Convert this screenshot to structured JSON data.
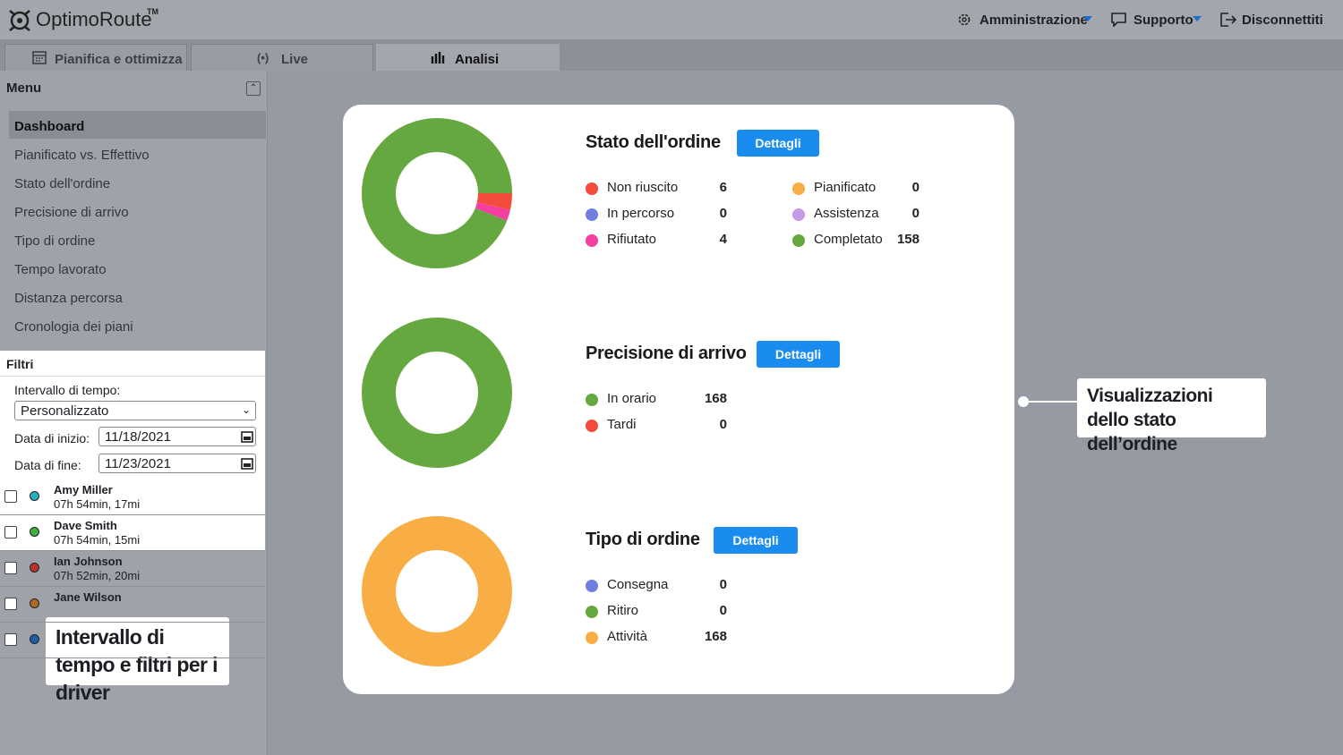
{
  "header": {
    "logo": "OptimoRoute",
    "trademark": "TM",
    "admin": "Amministrazione",
    "support": "Supporto",
    "logout": "Disconnettiti"
  },
  "tabs": [
    "Pianifica e ottimizza",
    "Live",
    "Analisi"
  ],
  "menu": {
    "title": "Menu",
    "items": [
      "Dashboard",
      "Pianificato vs. Effettivo",
      "Stato dell'ordine",
      "Precisione di arrivo",
      "Tipo di ordine",
      "Tempo lavorato",
      "Distanza percorsa",
      "Cronologia dei piani"
    ]
  },
  "filters": {
    "title": "Filtri",
    "range_label": "Intervallo di tempo:",
    "range_value": "Personalizzato",
    "start_label": "Data di inizio:",
    "start_value": "11/18/2021",
    "end_label": "Data di fine:",
    "end_value": "11/23/2021"
  },
  "drivers": [
    {
      "name": "Amy Miller",
      "detail": "07h 54min, 17mi",
      "color": "#2ab0bd"
    },
    {
      "name": "Dave Smith",
      "detail": "07h 54min, 15mi",
      "color": "#3fae3a"
    },
    {
      "name": "Ian Johnson",
      "detail": "07h 52min, 20mi",
      "color": "#b8332b"
    },
    {
      "name": "Jane Wilson",
      "color": "#b06a24"
    },
    {
      "color": "#1f5fa8"
    }
  ],
  "panels": [
    {
      "title": "Stato dell'ordine",
      "button": "Dettagli",
      "legend": [
        {
          "label": "Non riuscito",
          "value": 6,
          "color": "#f44c3c"
        },
        {
          "label": "In percorso",
          "value": 0,
          "color": "#6f7ee0"
        },
        {
          "label": "Rifiutato",
          "value": 4,
          "color": "#f43fa0"
        },
        {
          "label": "Pianificato",
          "value": 0,
          "color": "#f8ad45"
        },
        {
          "label": "Assistenza",
          "value": 0,
          "color": "#c79be8"
        },
        {
          "label": "Completato",
          "value": 158,
          "color": "#65a83f"
        }
      ]
    },
    {
      "title": "Precisione di arrivo",
      "button": "Dettagli",
      "legend": [
        {
          "label": "In orario",
          "value": 168,
          "color": "#65a83f"
        },
        {
          "label": "Tardi",
          "value": 0,
          "color": "#f44c3c"
        }
      ]
    },
    {
      "title": "Tipo di ordine",
      "button": "Dettagli",
      "legend": [
        {
          "label": "Consegna",
          "value": 0,
          "color": "#6f7ee0"
        },
        {
          "label": "Ritiro",
          "value": 0,
          "color": "#65a83f"
        },
        {
          "label": "Attività",
          "value": 168,
          "color": "#f8ad45"
        }
      ]
    }
  ],
  "callouts": [
    "Visualizzazioni dello stato dell’ordine",
    "Intervallo di tempo e filtri per i driver"
  ]
}
